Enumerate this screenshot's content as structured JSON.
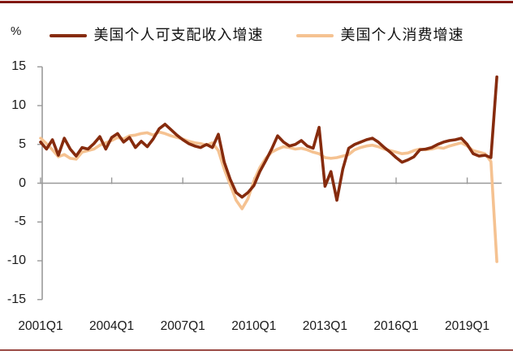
{
  "page": {
    "y_unit_label": "%"
  },
  "chart_data": {
    "type": "line",
    "frequency": "quarterly",
    "x_start": "2001Q1",
    "x_end": "2020Q2",
    "x_tick_labels": [
      "2001Q1",
      "2004Q1",
      "2007Q1",
      "2010Q1",
      "2013Q1",
      "2016Q1",
      "2019Q1"
    ],
    "y_ticks": [
      15,
      10,
      5,
      0,
      -5,
      -10,
      -15
    ],
    "ylim": [
      -15,
      15
    ],
    "y_unit": "%",
    "grid": "zero-line-only",
    "legend_position": "top-center",
    "axis_color": "#999999",
    "accent_border_top_color": "#8a1a14",
    "accent_border_bottom_color": "#9a4a44",
    "series": [
      {
        "name": "美国个人可支配收入增速",
        "color": "#862b0d",
        "values": [
          5.3,
          4.4,
          5.6,
          3.6,
          5.8,
          4.4,
          3.5,
          4.6,
          4.4,
          5.1,
          6.0,
          4.4,
          5.9,
          6.4,
          5.3,
          5.9,
          4.6,
          5.4,
          4.7,
          5.7,
          7.0,
          7.6,
          6.9,
          6.2,
          5.6,
          5.1,
          4.8,
          4.6,
          5.0,
          4.6,
          6.3,
          2.7,
          0.5,
          -1.2,
          -1.8,
          -1.2,
          -0.3,
          1.5,
          2.9,
          4.4,
          6.1,
          5.3,
          4.8,
          5.0,
          5.5,
          4.8,
          4.5,
          7.2,
          -0.4,
          1.5,
          -2.2,
          1.8,
          4.5,
          5.0,
          5.3,
          5.6,
          5.8,
          5.3,
          4.6,
          4.0,
          3.3,
          2.7,
          3.0,
          3.4,
          4.3,
          4.4,
          4.6,
          5.0,
          5.3,
          5.5,
          5.6,
          5.8,
          5.0,
          3.8,
          3.5,
          3.6,
          3.3,
          13.7
        ]
      },
      {
        "name": "美国个人消费增速",
        "color": "#f5c291",
        "values": [
          5.8,
          5.1,
          4.3,
          3.4,
          3.7,
          3.2,
          3.1,
          4.0,
          4.2,
          4.4,
          4.9,
          5.2,
          5.5,
          5.9,
          5.7,
          6.1,
          6.2,
          6.4,
          6.5,
          6.2,
          6.6,
          6.4,
          6.1,
          5.9,
          5.7,
          5.4,
          5.2,
          5.1,
          4.9,
          5.2,
          4.2,
          1.8,
          -0.2,
          -2.2,
          -3.3,
          -2.0,
          0.3,
          2.0,
          3.2,
          4.0,
          4.4,
          4.7,
          4.6,
          4.4,
          4.5,
          4.3,
          4.0,
          3.8,
          3.3,
          3.2,
          3.3,
          3.5,
          3.7,
          4.3,
          4.6,
          4.8,
          4.9,
          4.7,
          4.4,
          4.2,
          4.0,
          3.8,
          3.9,
          4.2,
          4.4,
          4.3,
          4.4,
          4.6,
          4.5,
          4.8,
          5.0,
          5.2,
          4.8,
          4.2,
          4.0,
          3.8,
          2.8,
          -10.1
        ]
      }
    ]
  }
}
